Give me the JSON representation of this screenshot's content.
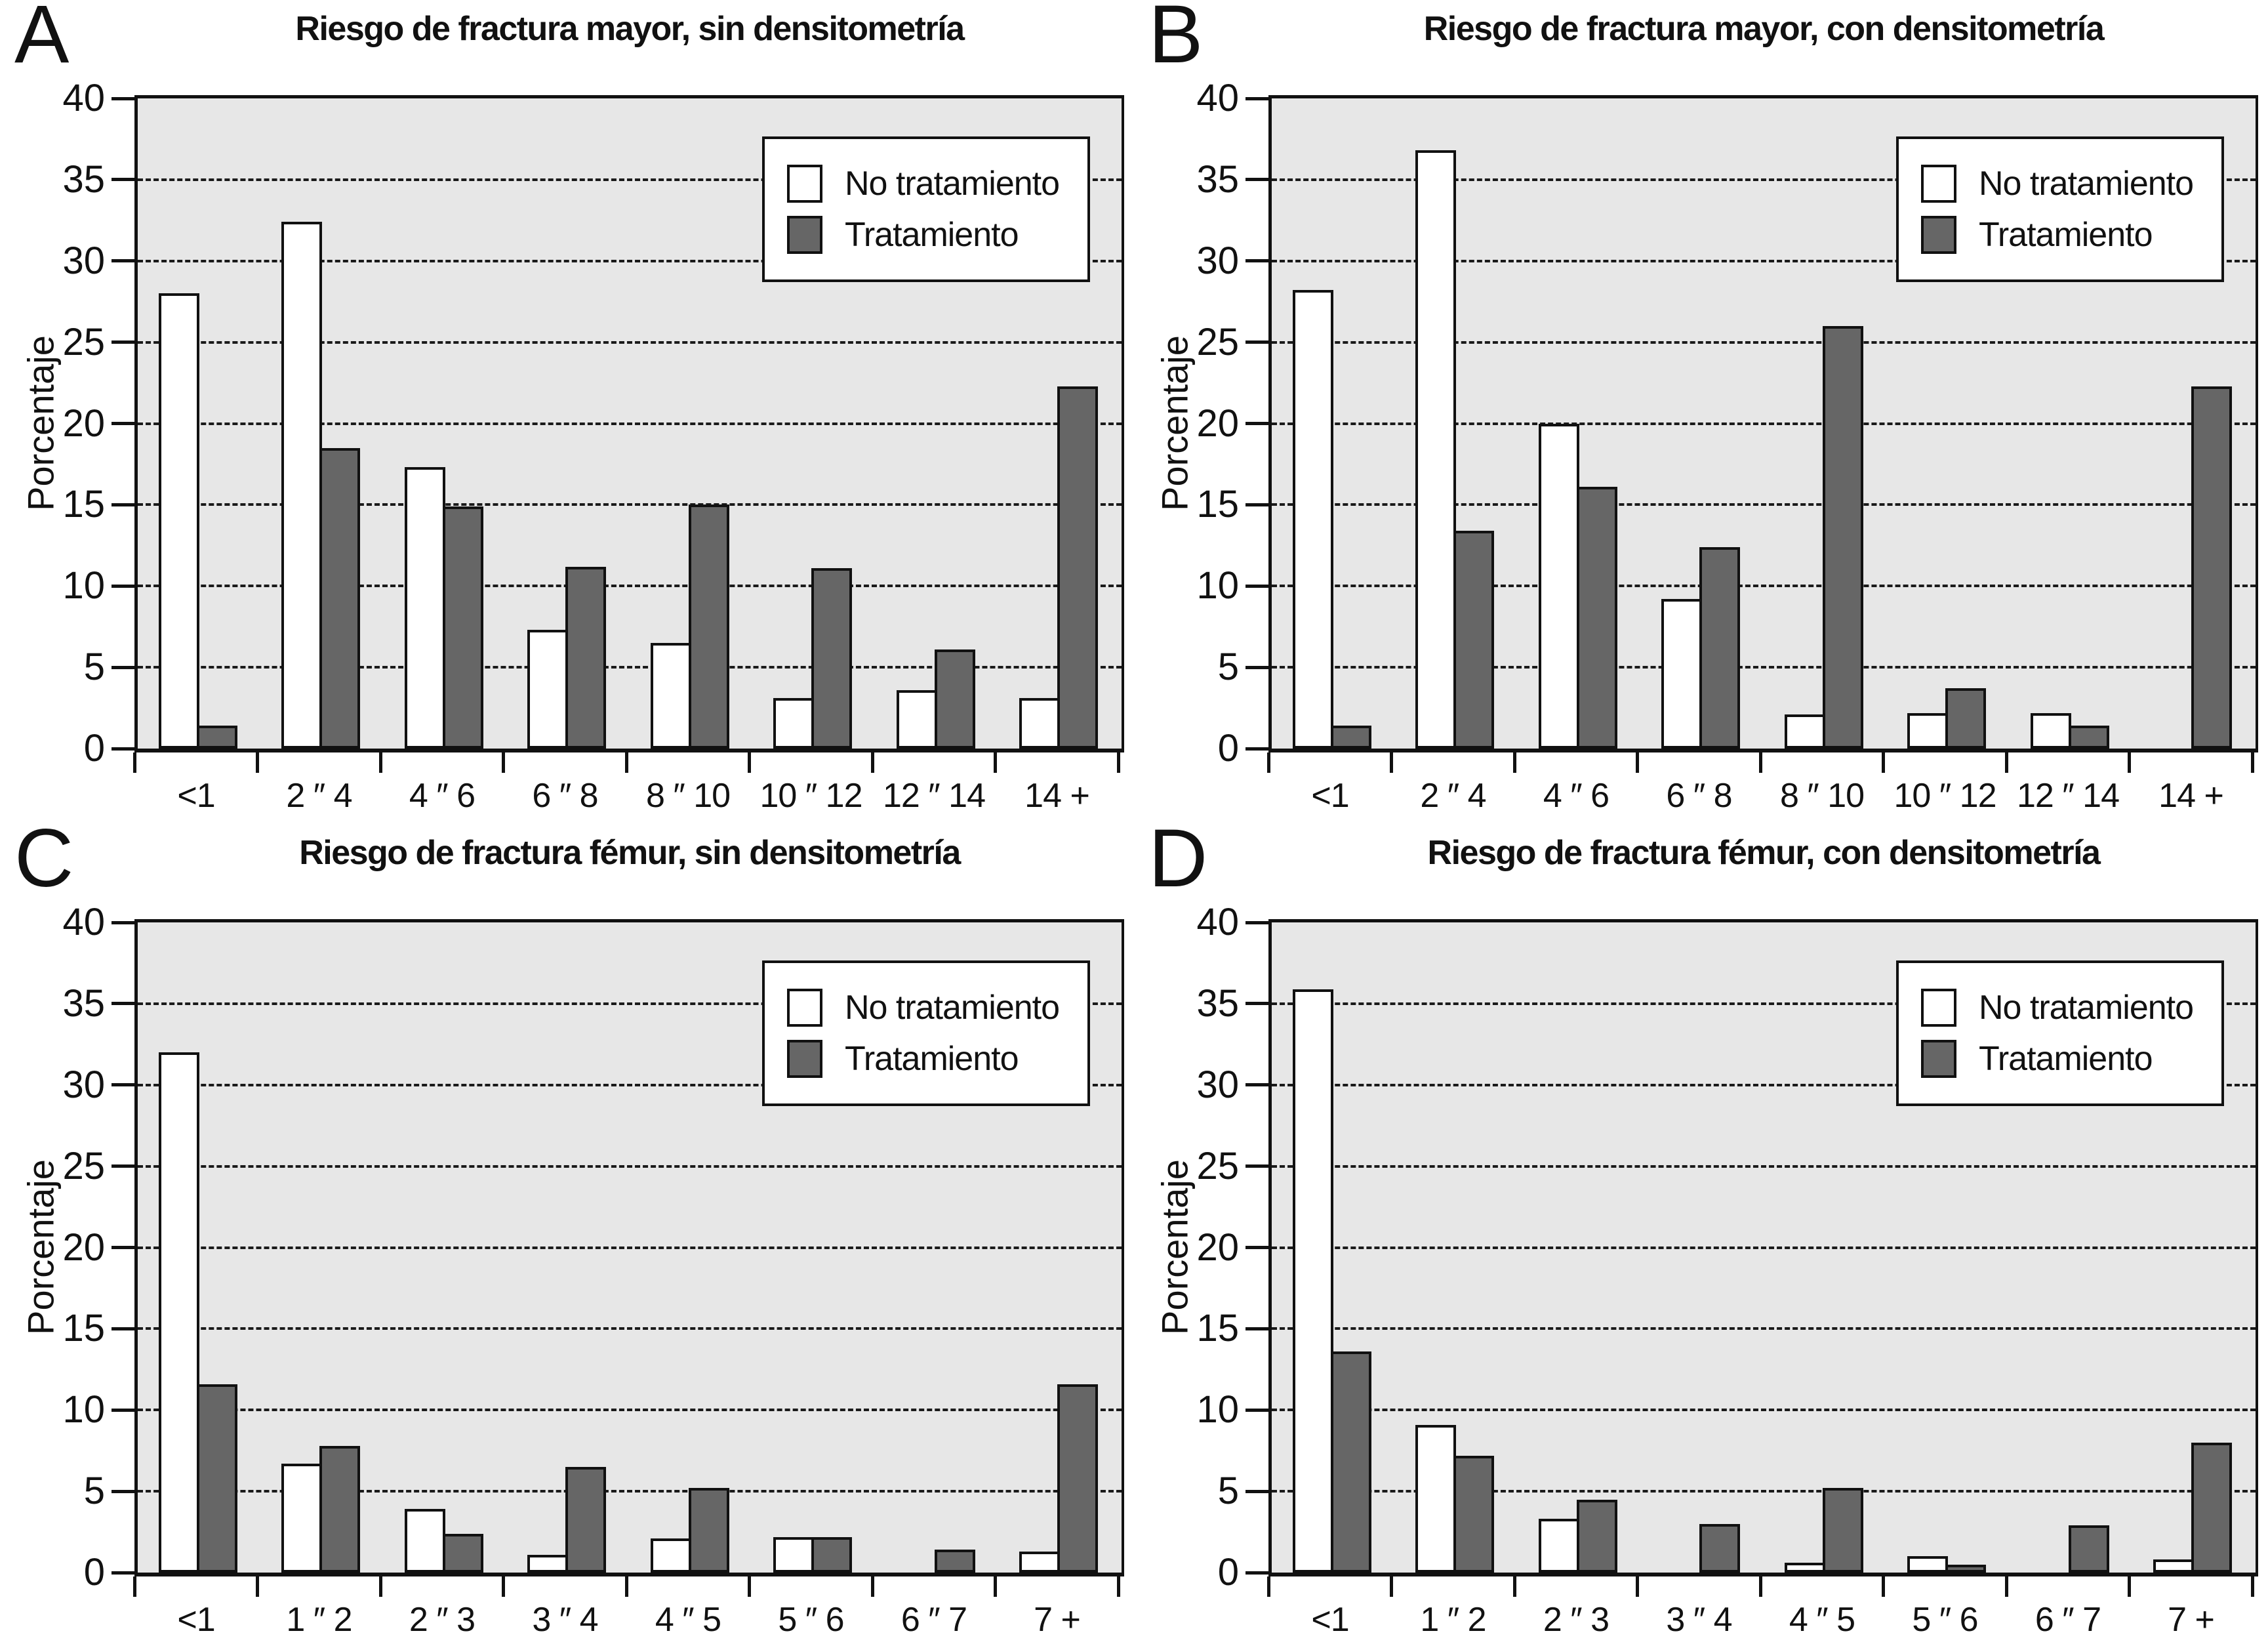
{
  "figure": {
    "description": "Four-panel bar chart figure comparing treatment vs no-treatment percentages by fracture risk category",
    "background": "#ffffff"
  },
  "panel_letters": [
    "A",
    "B",
    "C",
    "D"
  ],
  "colors": {
    "plot_background": "#e7e7e7",
    "axis_line": "#111111",
    "gridline": "#1a1a1a",
    "bar_no_treatment_fill": "#ffffff",
    "bar_treatment_fill": "#666666",
    "bar_outline": "#111111",
    "legend_background": "#ffffff",
    "text": "#111111"
  },
  "chart_data": [
    {
      "type": "bar",
      "title": "Riesgo de fractura mayor, sin densitometría",
      "xlabel": "",
      "ylabel": "Porcentaje",
      "ylim": [
        0,
        40
      ],
      "yticks": [
        0,
        5,
        10,
        15,
        20,
        25,
        30,
        35,
        40
      ],
      "grid": true,
      "gridstyle": "dashed",
      "legend_position": "top-right",
      "categories": [
        "<1",
        "2 ″ 4",
        "4 ″ 6",
        "6 ″ 8",
        "8 ″ 10",
        "10 ″ 12",
        "12 ″ 14",
        "14 +"
      ],
      "series": [
        {
          "name": "No tratamiento",
          "fill": "#ffffff",
          "values": [
            28.0,
            32.4,
            17.3,
            7.3,
            6.5,
            3.1,
            3.6,
            3.1
          ]
        },
        {
          "name": "Tratamiento",
          "fill": "#666666",
          "values": [
            1.4,
            18.5,
            14.9,
            11.2,
            15.0,
            11.1,
            6.1,
            22.3
          ]
        }
      ]
    },
    {
      "type": "bar",
      "title": "Riesgo de fractura mayor, con densitometría",
      "xlabel": "",
      "ylabel": "Porcentaje",
      "ylim": [
        0,
        40
      ],
      "yticks": [
        0,
        5,
        10,
        15,
        20,
        25,
        30,
        35,
        40
      ],
      "grid": true,
      "gridstyle": "dashed",
      "legend_position": "top-right",
      "categories": [
        "<1",
        "2 ″ 4",
        "4 ″ 6",
        "6 ″ 8",
        "8 ″ 10",
        "10 ″ 12",
        "12 ″ 14",
        "14 +"
      ],
      "series": [
        {
          "name": "No tratamiento",
          "fill": "#ffffff",
          "values": [
            28.2,
            36.8,
            20.0,
            9.2,
            2.1,
            2.2,
            2.2,
            0
          ]
        },
        {
          "name": "Tratamiento",
          "fill": "#666666",
          "values": [
            1.4,
            13.4,
            16.1,
            12.4,
            26.0,
            3.7,
            1.4,
            22.3
          ]
        }
      ]
    },
    {
      "type": "bar",
      "title": "Riesgo de fractura fémur, sin densitometría",
      "xlabel": "",
      "ylabel": "Porcentaje",
      "ylim": [
        0,
        40
      ],
      "yticks": [
        0,
        5,
        10,
        15,
        20,
        25,
        30,
        35,
        40
      ],
      "grid": true,
      "gridstyle": "dashed",
      "legend_position": "top-right",
      "categories": [
        "<1",
        "1 ″ 2",
        "2 ″ 3",
        "3 ″ 4",
        "4 ″ 5",
        "5 ″ 6",
        "6 ″ 7",
        "7 +"
      ],
      "series": [
        {
          "name": "No tratamiento",
          "fill": "#ffffff",
          "values": [
            32.0,
            6.7,
            3.9,
            1.1,
            2.1,
            2.2,
            0,
            1.3
          ]
        },
        {
          "name": "Tratamiento",
          "fill": "#666666",
          "values": [
            11.6,
            7.8,
            2.4,
            6.5,
            5.2,
            2.2,
            1.4,
            11.6
          ]
        }
      ]
    },
    {
      "type": "bar",
      "title": "Riesgo de fractura fémur, con densitometría",
      "xlabel": "",
      "ylabel": "Porcentaje",
      "ylim": [
        0,
        40
      ],
      "yticks": [
        0,
        5,
        10,
        15,
        20,
        25,
        30,
        35,
        40
      ],
      "grid": true,
      "gridstyle": "dashed",
      "legend_position": "top-right",
      "categories": [
        "<1",
        "1 ″ 2",
        "2 ″ 3",
        "3 ″ 4",
        "4 ″ 5",
        "5 ″ 6",
        "6 ″ 7",
        "7 +"
      ],
      "series": [
        {
          "name": "No tratamiento",
          "fill": "#ffffff",
          "values": [
            35.9,
            9.1,
            3.3,
            0,
            0.6,
            1.0,
            0,
            0.8
          ]
        },
        {
          "name": "Tratamiento",
          "fill": "#666666",
          "values": [
            13.6,
            7.2,
            4.5,
            3.0,
            5.2,
            0.5,
            2.9,
            8.0
          ]
        }
      ]
    }
  ]
}
